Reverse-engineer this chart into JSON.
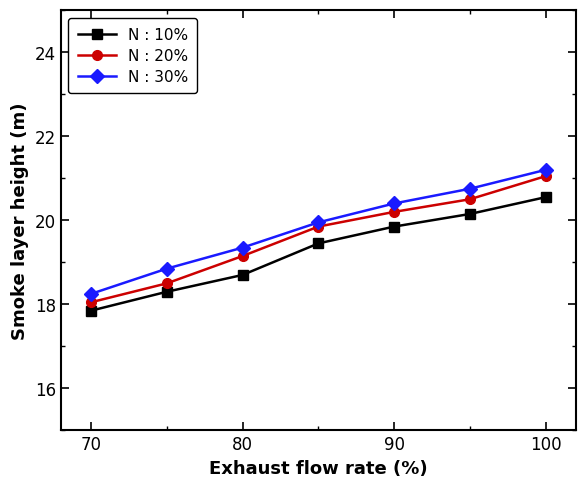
{
  "x": [
    70,
    75,
    80,
    85,
    90,
    95,
    100
  ],
  "n10": [
    17.85,
    18.3,
    18.7,
    19.45,
    19.85,
    20.15,
    20.55
  ],
  "n20": [
    18.05,
    18.5,
    19.15,
    19.85,
    20.2,
    20.5,
    21.05
  ],
  "n30": [
    18.25,
    18.85,
    19.35,
    19.95,
    20.4,
    20.75,
    21.2
  ],
  "colors": [
    "#000000",
    "#cc0000",
    "#1a1aff"
  ],
  "markers": [
    "s",
    "o",
    "D"
  ],
  "labels": [
    "N : 10%",
    "N : 20%",
    "N : 30%"
  ],
  "xlabel": "Exhaust flow rate (%)",
  "ylabel": "Smoke layer height (m)",
  "xlim": [
    68,
    102
  ],
  "ylim": [
    15,
    25
  ],
  "yticks": [
    16,
    18,
    20,
    22,
    24
  ],
  "xticks": [
    70,
    80,
    90,
    100
  ],
  "linewidth": 1.8,
  "markersize": 7,
  "xlabel_fontsize": 13,
  "ylabel_fontsize": 13,
  "tick_labelsize": 12,
  "legend_fontsize": 11
}
